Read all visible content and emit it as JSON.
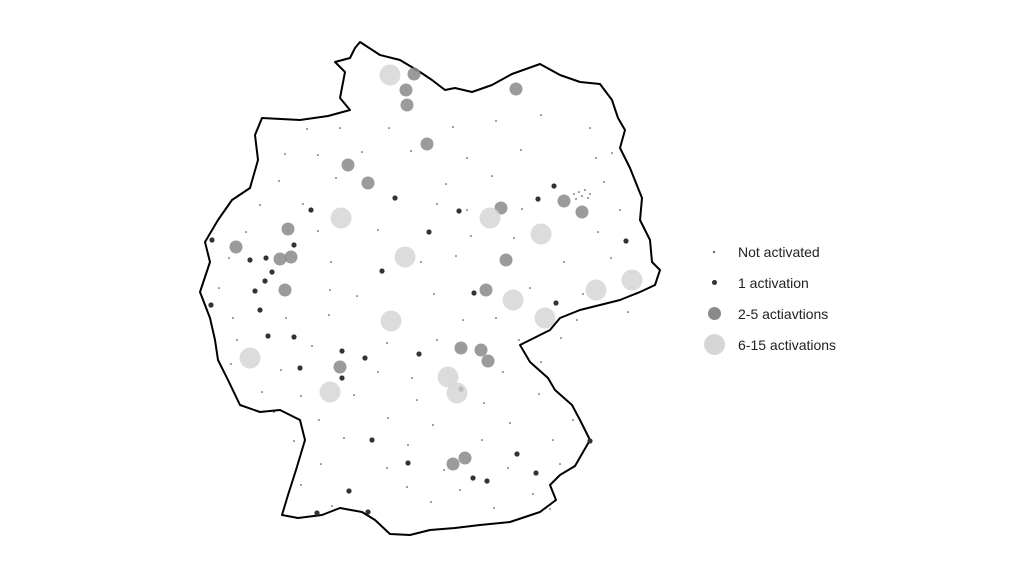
{
  "legend": {
    "items": [
      {
        "key": "none",
        "label": "Not activated",
        "color": "#333333"
      },
      {
        "key": "one",
        "label": "1 activation",
        "color": "#333333"
      },
      {
        "key": "few",
        "label": "2-5 actiavtions",
        "color": "#8a8a8a"
      },
      {
        "key": "many",
        "label": "6-15 activations",
        "color": "#d6d6d6"
      }
    ]
  },
  "stations": {
    "many": [
      [
        390,
        75
      ],
      [
        341,
        218
      ],
      [
        490,
        218
      ],
      [
        541,
        234
      ],
      [
        405,
        257
      ],
      [
        513,
        300
      ],
      [
        596,
        290
      ],
      [
        632,
        280
      ],
      [
        391,
        321
      ],
      [
        545,
        318
      ],
      [
        250,
        358
      ],
      [
        448,
        377
      ],
      [
        457,
        393
      ],
      [
        330,
        392
      ]
    ],
    "few": [
      [
        414,
        74
      ],
      [
        516,
        89
      ],
      [
        406,
        90
      ],
      [
        407,
        105
      ],
      [
        427,
        144
      ],
      [
        348,
        165
      ],
      [
        368,
        183
      ],
      [
        564,
        201
      ],
      [
        501,
        208
      ],
      [
        582,
        212
      ],
      [
        288,
        229
      ],
      [
        236,
        247
      ],
      [
        291,
        257
      ],
      [
        280,
        259
      ],
      [
        506,
        260
      ],
      [
        486,
        290
      ],
      [
        285,
        290
      ],
      [
        461,
        348
      ],
      [
        481,
        350
      ],
      [
        488,
        361
      ],
      [
        340,
        367
      ],
      [
        465,
        458
      ],
      [
        453,
        464
      ]
    ],
    "one": [
      [
        554,
        186
      ],
      [
        395,
        198
      ],
      [
        538,
        199
      ],
      [
        459,
        211
      ],
      [
        311,
        210
      ],
      [
        429,
        232
      ],
      [
        626,
        241
      ],
      [
        212,
        240
      ],
      [
        294,
        245
      ],
      [
        266,
        258
      ],
      [
        250,
        260
      ],
      [
        382,
        271
      ],
      [
        272,
        272
      ],
      [
        265,
        281
      ],
      [
        474,
        293
      ],
      [
        255,
        291
      ],
      [
        556,
        303
      ],
      [
        211,
        305
      ],
      [
        260,
        310
      ],
      [
        268,
        336
      ],
      [
        294,
        337
      ],
      [
        342,
        351
      ],
      [
        365,
        358
      ],
      [
        419,
        354
      ],
      [
        300,
        368
      ],
      [
        342,
        378
      ],
      [
        461,
        389
      ],
      [
        372,
        440
      ],
      [
        590,
        441
      ],
      [
        517,
        454
      ],
      [
        408,
        463
      ],
      [
        536,
        473
      ],
      [
        473,
        478
      ],
      [
        487,
        481
      ],
      [
        349,
        491
      ],
      [
        317,
        513
      ],
      [
        368,
        512
      ]
    ],
    "none": [
      [
        585,
        190
      ],
      [
        579,
        192
      ],
      [
        574,
        194
      ],
      [
        590,
        194
      ],
      [
        582,
        196
      ],
      [
        576,
        199
      ],
      [
        588,
        198
      ],
      [
        307,
        129
      ],
      [
        340,
        128
      ],
      [
        389,
        128
      ],
      [
        453,
        127
      ],
      [
        496,
        121
      ],
      [
        541,
        115
      ],
      [
        590,
        128
      ],
      [
        612,
        153
      ],
      [
        285,
        154
      ],
      [
        318,
        155
      ],
      [
        362,
        152
      ],
      [
        411,
        151
      ],
      [
        467,
        158
      ],
      [
        521,
        150
      ],
      [
        596,
        158
      ],
      [
        279,
        181
      ],
      [
        336,
        178
      ],
      [
        446,
        184
      ],
      [
        492,
        176
      ],
      [
        604,
        182
      ],
      [
        260,
        205
      ],
      [
        303,
        204
      ],
      [
        437,
        204
      ],
      [
        467,
        210
      ],
      [
        522,
        209
      ],
      [
        620,
        210
      ],
      [
        246,
        232
      ],
      [
        318,
        231
      ],
      [
        378,
        230
      ],
      [
        471,
        236
      ],
      [
        514,
        238
      ],
      [
        598,
        232
      ],
      [
        229,
        258
      ],
      [
        331,
        262
      ],
      [
        421,
        262
      ],
      [
        456,
        256
      ],
      [
        564,
        262
      ],
      [
        611,
        258
      ],
      [
        219,
        288
      ],
      [
        330,
        290
      ],
      [
        357,
        296
      ],
      [
        434,
        294
      ],
      [
        530,
        288
      ],
      [
        583,
        294
      ],
      [
        233,
        318
      ],
      [
        286,
        318
      ],
      [
        329,
        315
      ],
      [
        463,
        320
      ],
      [
        496,
        318
      ],
      [
        577,
        320
      ],
      [
        628,
        312
      ],
      [
        237,
        340
      ],
      [
        312,
        346
      ],
      [
        387,
        343
      ],
      [
        437,
        340
      ],
      [
        519,
        340
      ],
      [
        561,
        338
      ],
      [
        231,
        364
      ],
      [
        281,
        370
      ],
      [
        378,
        372
      ],
      [
        412,
        378
      ],
      [
        503,
        372
      ],
      [
        541,
        362
      ],
      [
        262,
        392
      ],
      [
        301,
        396
      ],
      [
        354,
        395
      ],
      [
        417,
        400
      ],
      [
        484,
        403
      ],
      [
        539,
        394
      ],
      [
        274,
        412
      ],
      [
        319,
        420
      ],
      [
        388,
        418
      ],
      [
        433,
        425
      ],
      [
        510,
        423
      ],
      [
        573,
        420
      ],
      [
        294,
        441
      ],
      [
        344,
        438
      ],
      [
        408,
        445
      ],
      [
        482,
        440
      ],
      [
        553,
        440
      ],
      [
        321,
        464
      ],
      [
        387,
        468
      ],
      [
        444,
        470
      ],
      [
        508,
        468
      ],
      [
        560,
        464
      ],
      [
        301,
        485
      ],
      [
        407,
        487
      ],
      [
        460,
        490
      ],
      [
        533,
        494
      ],
      [
        332,
        506
      ],
      [
        431,
        502
      ],
      [
        494,
        508
      ],
      [
        550,
        509
      ]
    ]
  }
}
